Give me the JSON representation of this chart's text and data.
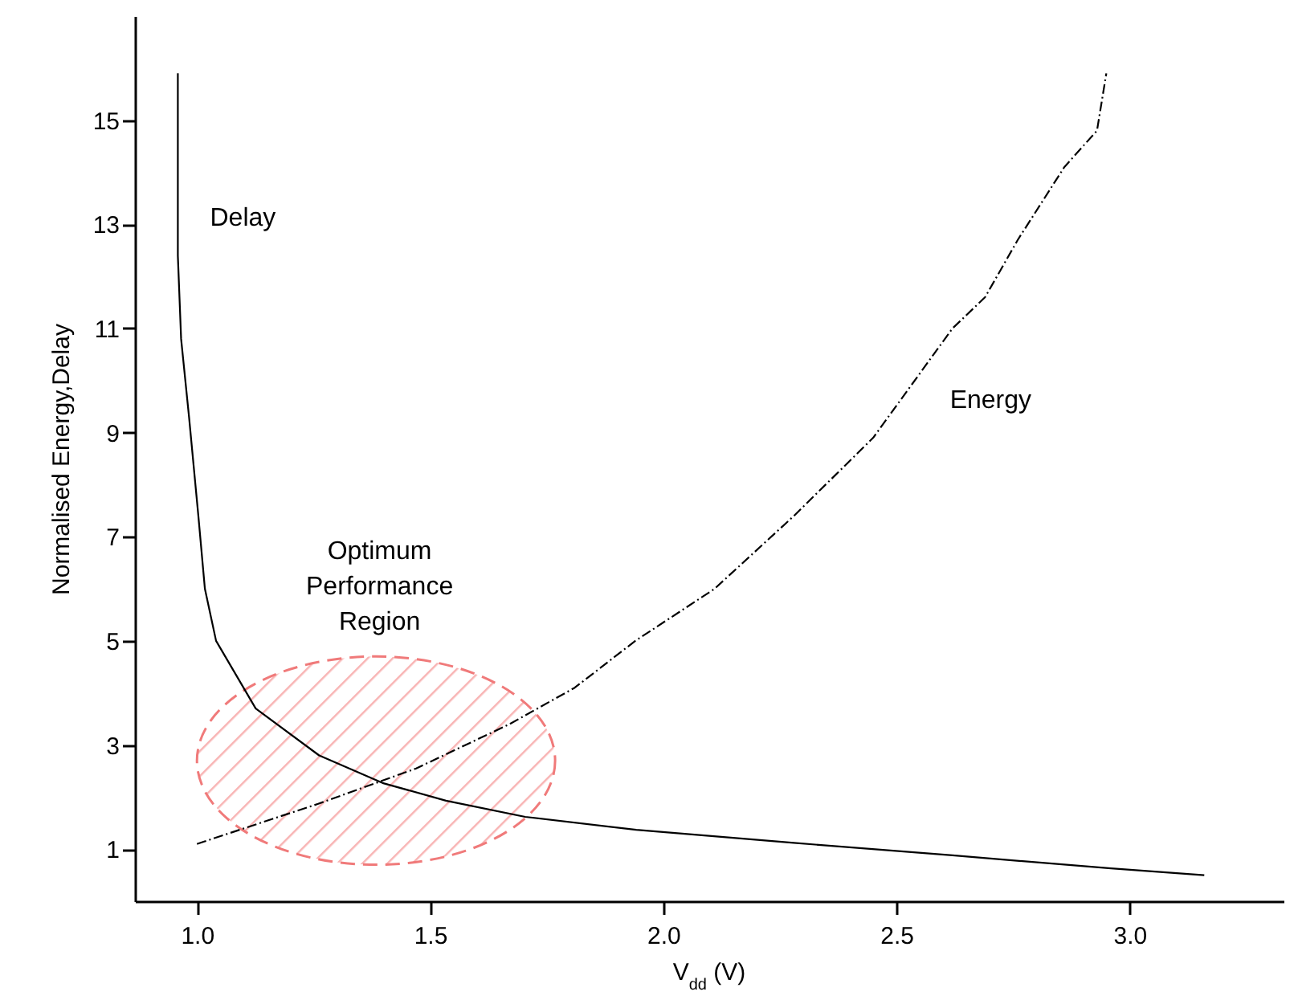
{
  "chart_data": {
    "type": "line",
    "xlabel": "V$_{dd}$ (V)",
    "ylabel": "Normalised Energy,Delay",
    "xlim": [
      0.867,
      3.33
    ],
    "ylim": [
      0,
      17
    ],
    "xticks": [
      {
        "value": 1,
        "label": "1.0"
      },
      {
        "value": 1.5,
        "label": "1.5"
      },
      {
        "value": 2,
        "label": "2.0"
      },
      {
        "value": 2.5,
        "label": "2.5"
      },
      {
        "value": 3,
        "label": "3.0"
      }
    ],
    "yticks": [
      1,
      3,
      5,
      7,
      9,
      11,
      13,
      15
    ],
    "grid": false,
    "marker": "none",
    "series": [
      {
        "name": "Delay",
        "color": "#000000",
        "line_style": "solid",
        "x": [
          0.959,
          0.959,
          0.966,
          0.983,
          1.003,
          1.017,
          1.041,
          1.126,
          1.262,
          1.398,
          1.534,
          1.704,
          1.942,
          2.28,
          2.62,
          2.96,
          3.16
        ],
        "values": [
          15.9,
          12.4,
          10.8,
          9.3,
          7.4,
          6.0,
          5.0,
          3.7,
          2.8,
          2.27,
          1.93,
          1.62,
          1.37,
          1.12,
          0.88,
          0.63,
          0.5
        ]
      },
      {
        "name": "Energy",
        "color": "#000000",
        "line_style": "dashed",
        "x": [
          1.0,
          1.26,
          1.47,
          1.67,
          1.81,
          1.94,
          2.11,
          2.28,
          2.45,
          2.62,
          2.69,
          2.76,
          2.86,
          2.93,
          2.95
        ],
        "values": [
          1.1,
          1.87,
          2.55,
          3.4,
          4.1,
          5.0,
          6.0,
          7.4,
          8.9,
          11.0,
          11.6,
          12.7,
          14.1,
          14.8,
          15.9
        ]
      }
    ],
    "annotations": [
      "Optimum Performance Region"
    ]
  }
}
